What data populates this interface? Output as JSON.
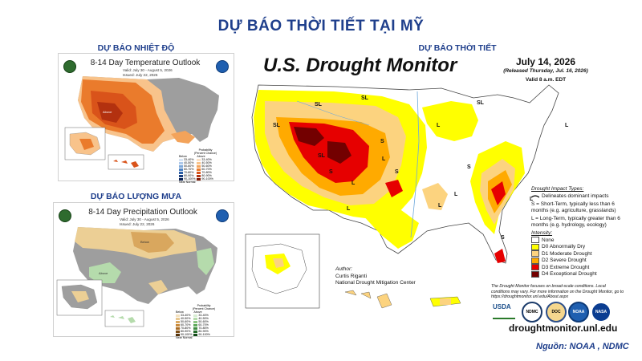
{
  "page_title": "DỰ BÁO THỜI TIẾT TẠI MỸ",
  "temp_section": {
    "heading": "DỰ BÁO NHIỆT ĐỘ",
    "map_title": "8-14 Day Temperature Outlook",
    "valid": "Valid: July 30 - August 5, 2026",
    "issued": "Issued: July 22, 2026",
    "legend_title": "Probability\n(Percent Chance)",
    "legend_above": "Above",
    "legend_below": "Below",
    "legend_near": "Near Normal",
    "legend_values": [
      "33-40%",
      "40-50%",
      "50-60%",
      "60-70%",
      "70-80%",
      "80-90%",
      "90-100%"
    ],
    "below_colors": [
      "#d6e4f5",
      "#aec9ea",
      "#7ea9da",
      "#4f84c4",
      "#2c5fa6",
      "#1a3e80",
      "#0e2557"
    ],
    "above_colors": [
      "#fbe1c6",
      "#f8c38b",
      "#f3a35a",
      "#ea7b2c",
      "#d9531a",
      "#b3310f",
      "#7f1a06"
    ],
    "colors": {
      "near_normal": "#9e9e9e",
      "above_light": "#f8c38b",
      "above_mid": "#ea7b2c",
      "above_strong": "#d9531a",
      "above_extreme": "#b3310f"
    },
    "map_labels": {
      "above": "Above",
      "near": "Near Normal",
      "below": "Below"
    }
  },
  "precip_section": {
    "heading": "DỰ BÁO LƯỢNG MƯA",
    "map_title": "8-14 Day Precipitation Outlook",
    "valid": "Valid: July 30 - August 5, 2026",
    "issued": "Issued: July 22, 2026",
    "legend_title": "Probability\n(Percent Chance)",
    "legend_above": "Above",
    "legend_below": "Below",
    "legend_near": "Near Normal",
    "legend_values": [
      "33-40%",
      "40-50%",
      "50-60%",
      "60-70%",
      "70-80%",
      "80-90%",
      "90-100%"
    ],
    "below_colors": [
      "#f3e1bf",
      "#e8c890",
      "#dba962",
      "#c98a3b",
      "#a96b22",
      "#7f4e15",
      "#55330b"
    ],
    "above_colors": [
      "#d8ecd3",
      "#b5dbac",
      "#8cc683",
      "#5fab5b",
      "#3d8b3f",
      "#246b2a",
      "#124a18"
    ],
    "colors": {
      "near_normal": "#9e9e9e",
      "below_light": "#eccf95",
      "below_mid": "#d9a75e",
      "above_light": "#b5dbac",
      "above_mid": "#8cc683"
    },
    "map_labels": {
      "below": "Below",
      "above": "Above",
      "near": "Near Normal"
    }
  },
  "drought_section": {
    "heading": "DỰ BÁO THỜI TIẾT",
    "map_title": "U.S. Drought Monitor",
    "date": "July 14, 2026",
    "released": "(Released Thursday, Jul. 16, 2026)",
    "valid": "Valid 8 a.m. EDT",
    "impact_title": "Drought Impact Types:",
    "impact_line": "Delineates dominant impacts",
    "impact_s": "S = Short-Term, typically less than 6 months (e.g. agriculture, grasslands)",
    "impact_l": "L = Long-Term, typically greater than 6 months (e.g. hydrology, ecology)",
    "intensity_title": "Intensity:",
    "intensity": [
      {
        "label": "None",
        "color": "#ffffff"
      },
      {
        "label": "D0 Abnormally Dry",
        "color": "#ffff00"
      },
      {
        "label": "D1 Moderate Drought",
        "color": "#fcd37f"
      },
      {
        "label": "D2 Severe Drought",
        "color": "#ffaa00"
      },
      {
        "label": "D3 Extreme Drought",
        "color": "#e60000"
      },
      {
        "label": "D4 Exceptional Drought",
        "color": "#730000"
      }
    ],
    "note": "The Drought Monitor focuses on broad-scale conditions. Local conditions may vary. For more information on the Drought Monitor, go to https://droughtmonitor.unl.edu/About.aspx",
    "author_label": "Author:",
    "author_name": "Curtis Riganti",
    "author_org": "National Drought Mitigation Center",
    "url": "droughtmonitor.unl.edu",
    "logos": [
      "USDA",
      "NDMC",
      "DOC",
      "NOAA",
      "NASA"
    ],
    "map_labels": [
      "SL",
      "SL",
      "SL",
      "L",
      "L",
      "L",
      "L",
      "S",
      "S",
      "S",
      "L",
      "L",
      "S",
      "SL",
      "SL",
      "L",
      "L",
      "S"
    ]
  },
  "source": {
    "prefix": "Nguồn:",
    "names": "NOAA , NDMC"
  }
}
